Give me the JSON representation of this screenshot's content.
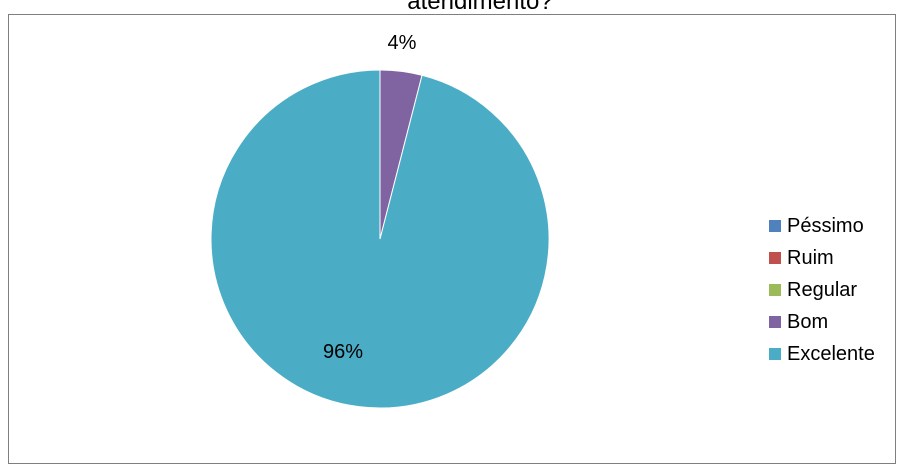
{
  "chart_data": {
    "type": "pie",
    "title": "atendimento?",
    "categories": [
      "Péssimo",
      "Ruim",
      "Regular",
      "Bom",
      "Excelente"
    ],
    "values": [
      0,
      0,
      0,
      4,
      96
    ],
    "data_labels": [
      "",
      "",
      "",
      "4%",
      "96%"
    ],
    "colors": [
      "#4f81bd",
      "#c0504d",
      "#9bbb59",
      "#8064a2",
      "#4bacc6"
    ],
    "legend_position": "right"
  }
}
